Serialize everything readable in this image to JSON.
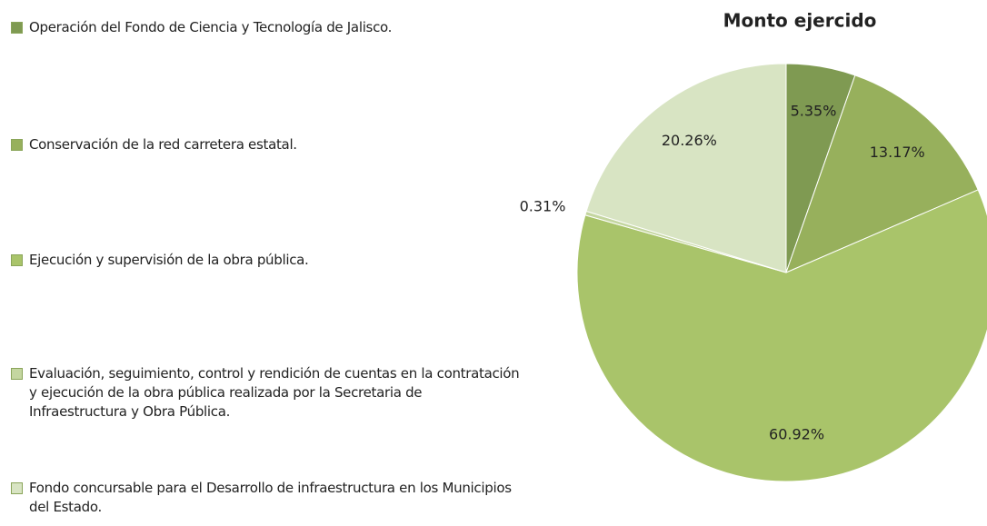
{
  "chart_data": {
    "type": "pie",
    "title": "Monto ejercido",
    "categories": [
      "Operación del Fondo de Ciencia y Tecnología de Jalisco.",
      "Conservación de la red carretera estatal.",
      "Ejecución y supervisión de la obra pública.",
      "Evaluación, seguimiento, control y rendición de cuentas en la contratación y ejecución de la obra pública realizada por la Secretaria de Infraestructura y Obra Pública.",
      "Fondo concursable para el Desarrollo de infraestructura en los Municipios del Estado."
    ],
    "values": [
      5.35,
      13.17,
      60.92,
      0.31,
      20.26
    ],
    "value_labels": [
      "5.35%",
      "13.17%",
      "60.92%",
      "0.31%",
      "20.26%"
    ],
    "colors": [
      "#7f9a52",
      "#97b05c",
      "#a9c46a",
      "#c4d6a0",
      "#d8e4c3"
    ],
    "legend": "left"
  }
}
